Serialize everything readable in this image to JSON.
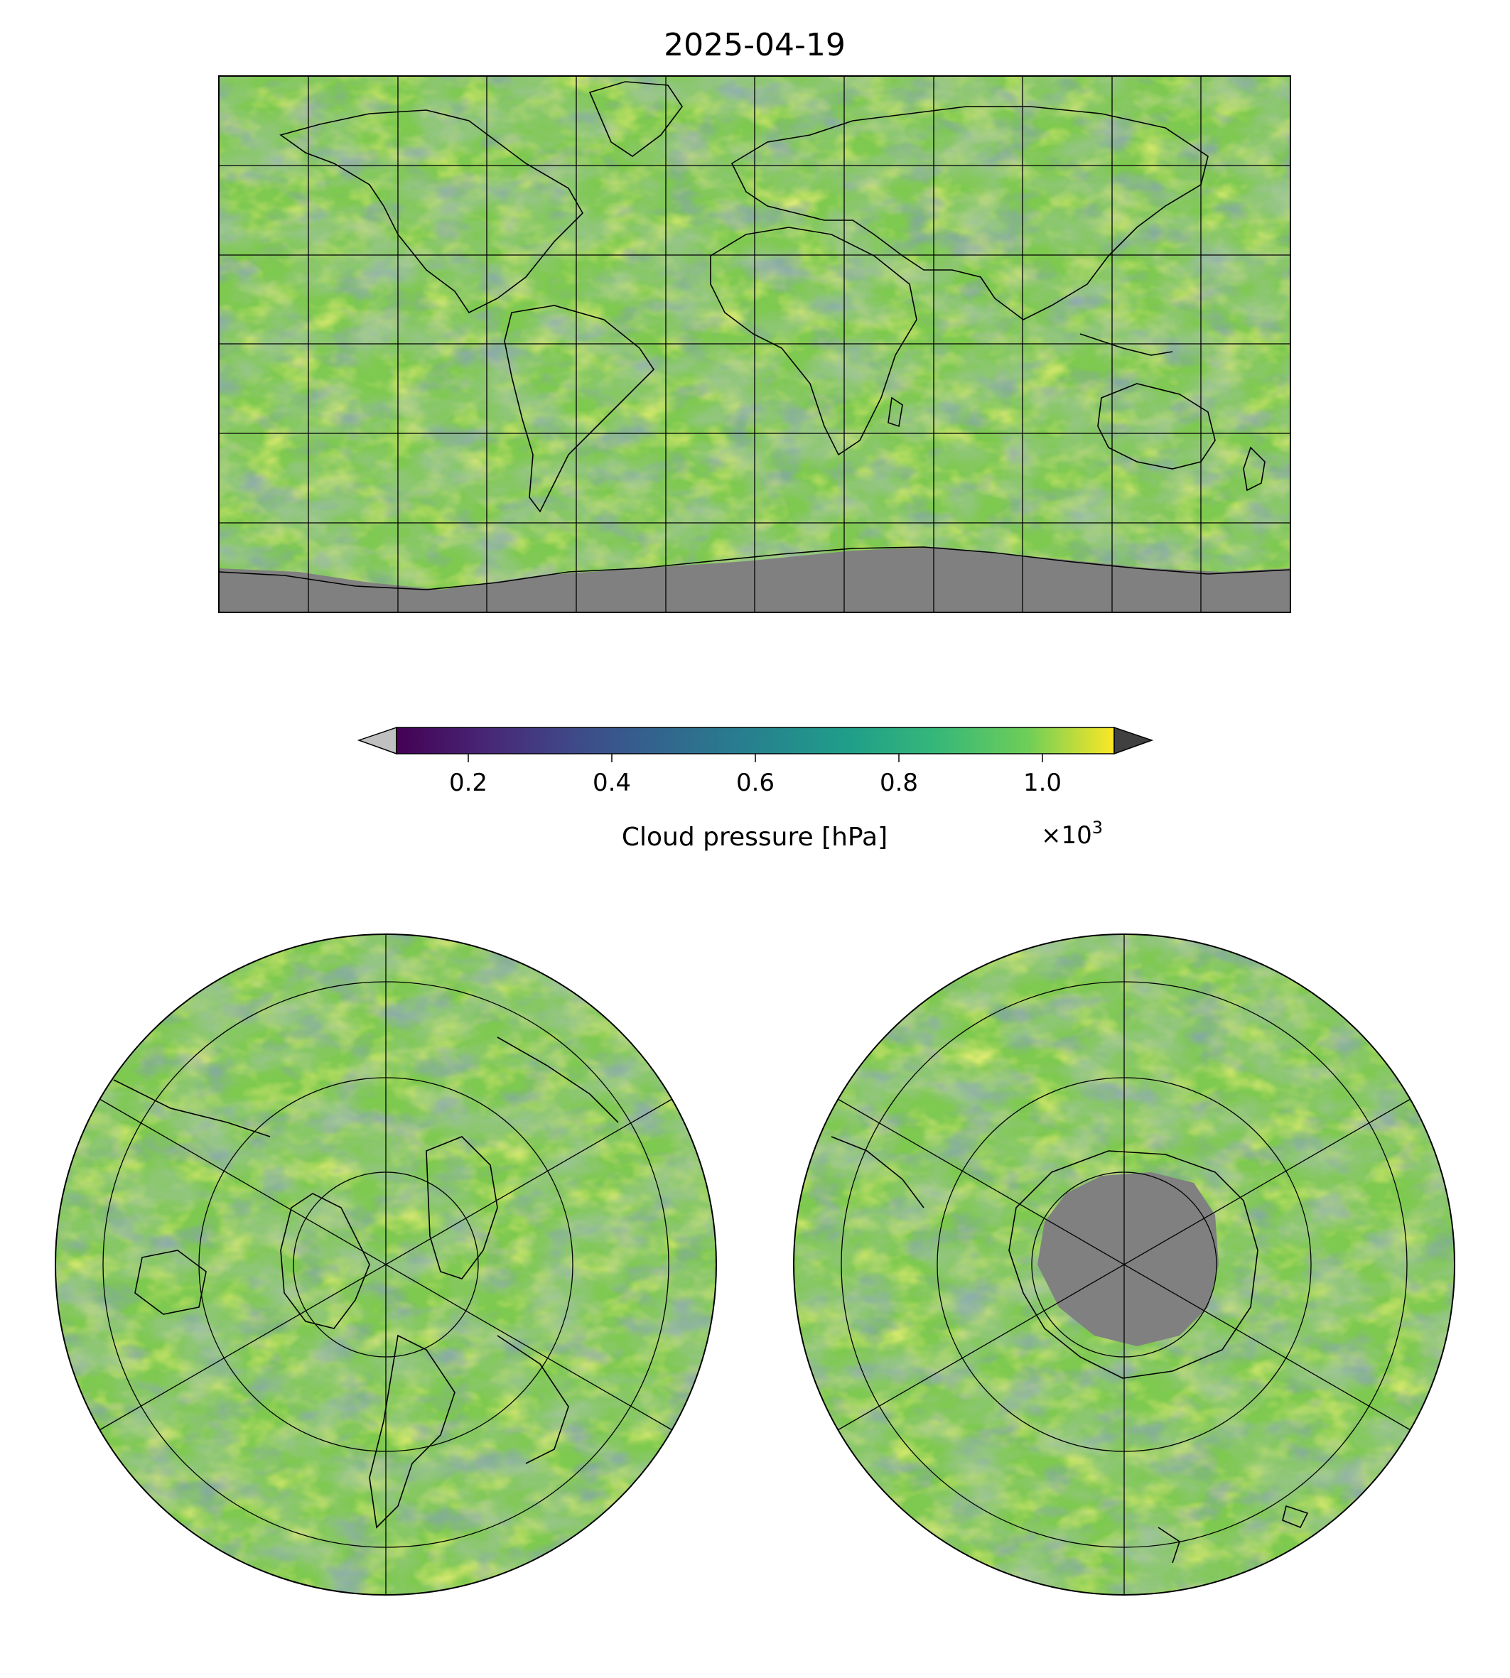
{
  "figure": {
    "title": "2025-04-19"
  },
  "colorbar": {
    "label": "Cloud pressure [hPa]",
    "multiplier_base": "×10",
    "multiplier_exp": "3",
    "ticks": [
      "0.2",
      "0.4",
      "0.6",
      "0.8",
      "1.0"
    ],
    "tick_values": [
      0.2,
      0.4,
      0.6,
      0.8,
      1.0
    ],
    "range": [
      0.1,
      1.1
    ],
    "under_color": "#c0c0c0",
    "over_color": "#404040",
    "colormap": "viridis"
  },
  "maps": {
    "global": {
      "projection": "plate-carree",
      "gridlines": true,
      "no_data_color": "#808080"
    },
    "north_polar": {
      "projection": "north-polar-stereographic",
      "gridlines": true
    },
    "south_polar": {
      "projection": "south-polar-stereographic",
      "gridlines": true,
      "no_data_color": "#808080"
    }
  },
  "colors": {
    "low": "#440154",
    "mid_low": "#3b528b",
    "mid": "#21918c",
    "mid_high": "#5ec962",
    "high": "#fde725",
    "coastline": "#000000"
  }
}
